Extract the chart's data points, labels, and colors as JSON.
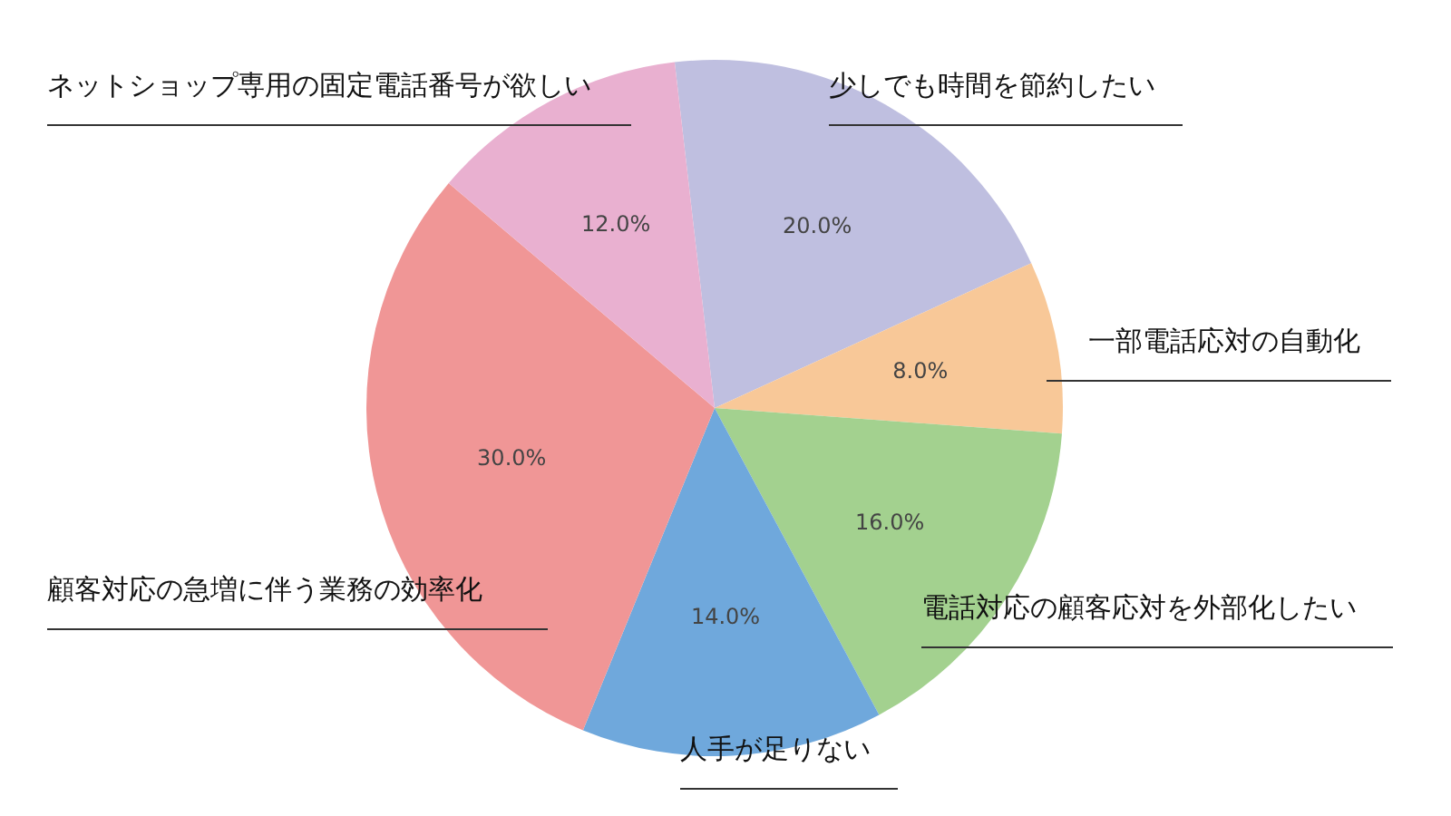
{
  "chart_data": {
    "type": "pie",
    "categories": [
      "少しでも時間を節約したい",
      "一部電話応対の自動化",
      "電話対応の顧客応対を外部化したい",
      "人手が足りない",
      "顧客対応の急増に伴う業務の効率化",
      "ネットショップ専用の固定電話番号が欲しい"
    ],
    "values": [
      20,
      8,
      16,
      14,
      30,
      12
    ],
    "value_labels": [
      "20.0%",
      "8.0%",
      "16.0%",
      "14.0%",
      "30.0%",
      "12.0%"
    ],
    "colors": [
      "#bfbfe0",
      "#f8c898",
      "#a3d18f",
      "#6fa8dc",
      "#f09696",
      "#e9b0d0"
    ]
  }
}
